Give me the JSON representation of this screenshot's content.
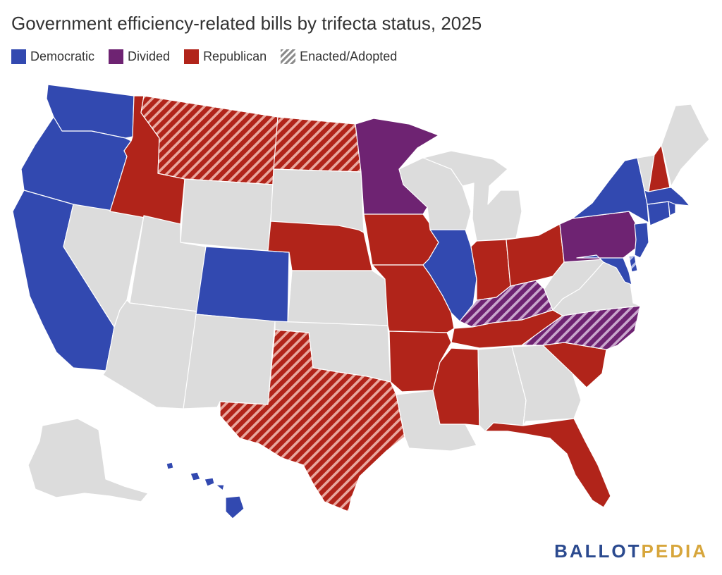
{
  "title": "Government efficiency-related bills by trifecta status, 2025",
  "legend": [
    {
      "key": "democratic",
      "label": "Democratic",
      "color": "#3249b0"
    },
    {
      "key": "divided",
      "label": "Divided",
      "color": "#6e2372"
    },
    {
      "key": "republican",
      "label": "Republican",
      "color": "#b1241a"
    },
    {
      "key": "enacted",
      "label": "Enacted/Adopted",
      "color": "#8c8c8c"
    }
  ],
  "colors": {
    "democratic": "#3249b0",
    "divided": "#6e2372",
    "republican": "#b1241a",
    "none": "#dcdcdc",
    "border": "#ffffff"
  },
  "states": {
    "WA": {
      "status": "democratic",
      "enacted": false
    },
    "OR": {
      "status": "democratic",
      "enacted": false
    },
    "CA": {
      "status": "democratic",
      "enacted": false
    },
    "NV": {
      "status": "none",
      "enacted": false
    },
    "ID": {
      "status": "republican",
      "enacted": false
    },
    "MT": {
      "status": "republican",
      "enacted": true
    },
    "WY": {
      "status": "none",
      "enacted": false
    },
    "UT": {
      "status": "none",
      "enacted": false
    },
    "AZ": {
      "status": "none",
      "enacted": false
    },
    "CO": {
      "status": "democratic",
      "enacted": false
    },
    "NM": {
      "status": "none",
      "enacted": false
    },
    "ND": {
      "status": "republican",
      "enacted": true
    },
    "SD": {
      "status": "none",
      "enacted": false
    },
    "NE": {
      "status": "republican",
      "enacted": false
    },
    "KS": {
      "status": "none",
      "enacted": false
    },
    "OK": {
      "status": "none",
      "enacted": false
    },
    "TX": {
      "status": "republican",
      "enacted": true
    },
    "MN": {
      "status": "divided",
      "enacted": false
    },
    "IA": {
      "status": "republican",
      "enacted": false
    },
    "MO": {
      "status": "republican",
      "enacted": false
    },
    "AR": {
      "status": "republican",
      "enacted": false
    },
    "LA": {
      "status": "none",
      "enacted": false
    },
    "WI": {
      "status": "none",
      "enacted": false
    },
    "IL": {
      "status": "democratic",
      "enacted": false
    },
    "MI": {
      "status": "none",
      "enacted": false
    },
    "IN": {
      "status": "republican",
      "enacted": false
    },
    "OH": {
      "status": "republican",
      "enacted": false
    },
    "KY": {
      "status": "divided",
      "enacted": true
    },
    "TN": {
      "status": "republican",
      "enacted": false
    },
    "MS": {
      "status": "republican",
      "enacted": false
    },
    "AL": {
      "status": "none",
      "enacted": false
    },
    "GA": {
      "status": "none",
      "enacted": false
    },
    "FL": {
      "status": "republican",
      "enacted": false
    },
    "SC": {
      "status": "republican",
      "enacted": false
    },
    "NC": {
      "status": "divided",
      "enacted": true
    },
    "VA": {
      "status": "none",
      "enacted": false
    },
    "WV": {
      "status": "none",
      "enacted": false
    },
    "PA": {
      "status": "divided",
      "enacted": false
    },
    "NY": {
      "status": "democratic",
      "enacted": false
    },
    "VT": {
      "status": "none",
      "enacted": false
    },
    "NH": {
      "status": "republican",
      "enacted": false
    },
    "ME": {
      "status": "none",
      "enacted": false
    },
    "MA": {
      "status": "democratic",
      "enacted": false
    },
    "RI": {
      "status": "democratic",
      "enacted": false
    },
    "CT": {
      "status": "democratic",
      "enacted": false
    },
    "NJ": {
      "status": "democratic",
      "enacted": false
    },
    "DE": {
      "status": "democratic",
      "enacted": true
    },
    "MD": {
      "status": "democratic",
      "enacted": false
    },
    "AK": {
      "status": "none",
      "enacted": false
    },
    "HI": {
      "status": "democratic",
      "enacted": false
    }
  },
  "logo": {
    "part1": "BALLOT",
    "part2": "PEDIA"
  }
}
